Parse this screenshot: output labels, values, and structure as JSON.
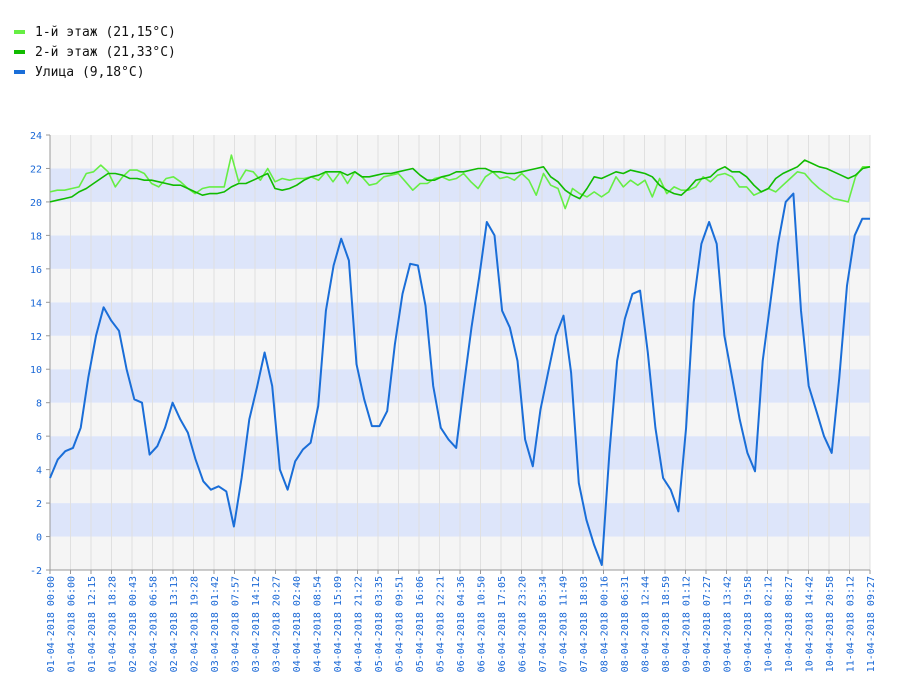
{
  "chart_data": {
    "type": "line",
    "ylim": [
      -2,
      24
    ],
    "yticks": [
      -2,
      0,
      2,
      4,
      6,
      8,
      10,
      12,
      14,
      16,
      18,
      20,
      22,
      24
    ],
    "x_tick_labels": [
      "01-04-2018 00:00",
      "01-04-2018 06:00",
      "01-04-2018 12:15",
      "01-04-2018 18:28",
      "02-04-2018 00:43",
      "02-04-2018 06:58",
      "02-04-2018 13:13",
      "02-04-2018 19:28",
      "03-04-2018 01:42",
      "03-04-2018 07:57",
      "03-04-2018 14:12",
      "03-04-2018 20:27",
      "04-04-2018 02:40",
      "04-04-2018 08:54",
      "04-04-2018 15:09",
      "04-04-2018 21:22",
      "05-04-2018 03:35",
      "05-04-2018 09:51",
      "05-04-2018 16:06",
      "05-04-2018 22:21",
      "06-04-2018 04:36",
      "06-04-2018 10:50",
      "06-04-2018 17:05",
      "06-04-2018 23:20",
      "07-04-2018 05:34",
      "07-04-2018 11:49",
      "07-04-2018 18:03",
      "08-04-2018 00:16",
      "08-04-2018 06:31",
      "08-04-2018 12:44",
      "08-04-2018 18:59",
      "09-04-2018 01:12",
      "09-04-2018 07:27",
      "09-04-2018 13:42",
      "09-04-2018 19:58",
      "10-04-2018 02:12",
      "10-04-2018 08:27",
      "10-04-2018 14:42",
      "10-04-2018 20:58",
      "11-04-2018 03:12",
      "11-04-2018 09:27"
    ],
    "grid": true,
    "legend_position": "top-left",
    "series": [
      {
        "name": "1-й этаж (21,15°C)",
        "color": "#66ee44",
        "values": [
          20.6,
          20.7,
          20.7,
          20.8,
          20.9,
          21.7,
          21.8,
          22.2,
          21.8,
          20.9,
          21.5,
          21.9,
          21.9,
          21.7,
          21.1,
          20.9,
          21.4,
          21.5,
          21.2,
          20.8,
          20.5,
          20.8,
          20.9,
          20.9,
          20.9,
          22.8,
          21.2,
          21.9,
          21.8,
          21.3,
          22.0,
          21.2,
          21.4,
          21.3,
          21.4,
          21.4,
          21.5,
          21.3,
          21.8,
          21.2,
          21.8,
          21.1,
          21.8,
          21.5,
          21.0,
          21.1,
          21.5,
          21.6,
          21.7,
          21.2,
          20.7,
          21.1,
          21.1,
          21.4,
          21.5,
          21.3,
          21.4,
          21.7,
          21.2,
          20.8,
          21.5,
          21.8,
          21.4,
          21.5,
          21.3,
          21.7,
          21.3,
          20.4,
          21.7,
          21.0,
          20.8,
          19.6,
          20.8,
          20.5,
          20.3,
          20.6,
          20.3,
          20.6,
          21.5,
          20.9,
          21.3,
          21.0,
          21.3,
          20.3,
          21.4,
          20.5,
          20.9,
          20.7,
          20.7,
          20.9,
          21.5,
          21.2,
          21.6,
          21.7,
          21.5,
          20.9,
          20.9,
          20.4,
          20.6,
          20.8,
          20.6,
          21.0,
          21.4,
          21.8,
          21.7,
          21.2,
          20.8,
          20.5,
          20.2,
          20.1,
          20.0,
          21.5,
          22.1,
          22.1
        ]
      },
      {
        "name": "2-й этаж (21,33°C)",
        "color": "#11bb00",
        "values": [
          20.0,
          20.1,
          20.2,
          20.3,
          20.6,
          20.8,
          21.1,
          21.4,
          21.7,
          21.7,
          21.6,
          21.4,
          21.4,
          21.3,
          21.3,
          21.2,
          21.1,
          21.0,
          21.0,
          20.8,
          20.6,
          20.4,
          20.5,
          20.5,
          20.6,
          20.9,
          21.1,
          21.1,
          21.3,
          21.5,
          21.7,
          20.8,
          20.7,
          20.8,
          21.0,
          21.3,
          21.5,
          21.6,
          21.8,
          21.8,
          21.8,
          21.6,
          21.8,
          21.5,
          21.5,
          21.6,
          21.7,
          21.7,
          21.8,
          21.9,
          22.0,
          21.6,
          21.3,
          21.3,
          21.5,
          21.6,
          21.8,
          21.8,
          21.9,
          22.0,
          22.0,
          21.8,
          21.8,
          21.7,
          21.7,
          21.8,
          21.9,
          22.0,
          22.1,
          21.5,
          21.2,
          20.7,
          20.4,
          20.2,
          20.8,
          21.5,
          21.4,
          21.6,
          21.8,
          21.7,
          21.9,
          21.8,
          21.7,
          21.5,
          21.0,
          20.7,
          20.5,
          20.4,
          20.8,
          21.3,
          21.4,
          21.5,
          21.9,
          22.1,
          21.8,
          21.8,
          21.5,
          21.0,
          20.6,
          20.8,
          21.4,
          21.7,
          21.9,
          22.1,
          22.5,
          22.3,
          22.1,
          22.0,
          21.8,
          21.6,
          21.4,
          21.6,
          22.0,
          22.1
        ]
      },
      {
        "name": "Улица (9,18°C)",
        "color": "#1a6ed8",
        "values": [
          3.5,
          4.6,
          5.1,
          5.3,
          6.5,
          9.5,
          12.0,
          13.7,
          12.9,
          12.3,
          10.0,
          8.2,
          8.0,
          4.9,
          5.4,
          6.5,
          8.0,
          7.0,
          6.2,
          4.6,
          3.3,
          2.8,
          3.0,
          2.7,
          0.6,
          3.5,
          7.0,
          8.9,
          11.0,
          9.0,
          4.0,
          2.8,
          4.5,
          5.2,
          5.6,
          7.8,
          13.5,
          16.2,
          17.8,
          16.5,
          10.3,
          8.2,
          6.6,
          6.6,
          7.5,
          11.5,
          14.5,
          16.3,
          16.2,
          13.8,
          9.0,
          6.5,
          5.8,
          5.3,
          9.0,
          12.5,
          15.5,
          18.8,
          18.0,
          13.5,
          12.5,
          10.5,
          5.8,
          4.2,
          7.6,
          9.8,
          12.0,
          13.2,
          9.8,
          3.2,
          1.0,
          -0.5,
          -1.7,
          5.0,
          10.5,
          13.0,
          14.5,
          14.7,
          11.0,
          6.5,
          3.5,
          2.8,
          1.5,
          6.5,
          14.0,
          17.5,
          18.8,
          17.5,
          12.0,
          9.5,
          7.0,
          5.0,
          3.9,
          10.5,
          14.0,
          17.5,
          20.0,
          20.5,
          13.5,
          9.0,
          7.5,
          6.0,
          5.0,
          9.5,
          15.0,
          18.0,
          19.0,
          19.0
        ]
      }
    ]
  }
}
